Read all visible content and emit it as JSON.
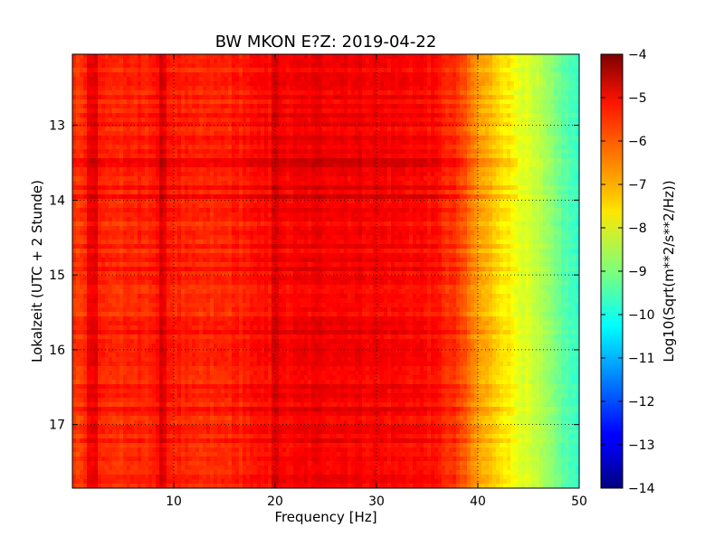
{
  "chart_data": {
    "type": "heatmap",
    "title": "BW MKON E?Z: 2019-04-22",
    "xlabel": "Frequency [Hz]",
    "ylabel": "Lokalzeit (UTC + 2 Stunde)",
    "xlim": [
      0,
      50
    ],
    "ylim": [
      12.05,
      17.85
    ],
    "y_inverted": true,
    "grid": true,
    "x_ticks": [
      10,
      20,
      30,
      40,
      50
    ],
    "y_ticks": [
      13,
      14,
      15,
      16,
      17
    ],
    "colorbar": {
      "label": "Log10(Sqrt(m**2/s**2/Hz))",
      "colormap": "jet",
      "vmin": -14,
      "vmax": -4,
      "ticks": [
        -4,
        -5,
        -6,
        -7,
        -8,
        -9,
        -10,
        -11,
        -12,
        -13,
        -14
      ]
    },
    "spectral_profile": {
      "frequency_hz": [
        0,
        2,
        5,
        9,
        12,
        15,
        20,
        25,
        30,
        35,
        38,
        40,
        42,
        44,
        46,
        48,
        50
      ],
      "level": [
        -5.8,
        -5.5,
        -5.7,
        -5.4,
        -5.7,
        -5.6,
        -5.3,
        -5.1,
        -5.2,
        -5.3,
        -5.8,
        -6.8,
        -7.3,
        -7.9,
        -8.5,
        -9.2,
        -9.8
      ]
    }
  }
}
